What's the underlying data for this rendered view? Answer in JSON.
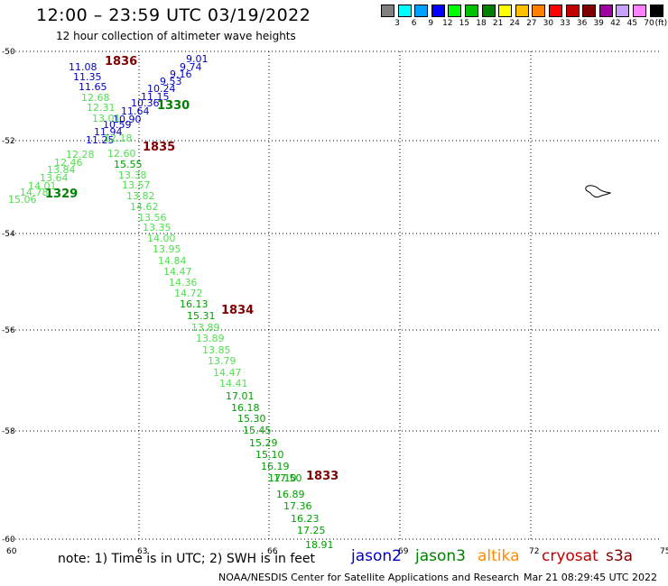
{
  "header": {
    "title": "12:00 – 23:59 UTC 03/19/2022",
    "subtitle": "12 hour collection of altimeter wave heights"
  },
  "legend": {
    "unit": "(ft)",
    "levels": [
      "3",
      "6",
      "9",
      "12",
      "15",
      "18",
      "21",
      "24",
      "27",
      "30",
      "33",
      "36",
      "39",
      "42",
      "45",
      "70"
    ],
    "colors": [
      "#808080",
      "#00ffff",
      "#00a0ff",
      "#0000ff",
      "#00ff00",
      "#00c000",
      "#008000",
      "#ffff00",
      "#ffc000",
      "#ff8000",
      "#ff0000",
      "#c00000",
      "#800000",
      "#a000a0",
      "#c8a0ff",
      "#ff80ff",
      "#000000"
    ]
  },
  "map": {
    "x_ticks": [
      "60",
      "63",
      "66",
      "69",
      "72",
      "75"
    ],
    "y_ticks": [
      "-50",
      "-52",
      "-54",
      "-56",
      "-58",
      "-60"
    ],
    "track_times": [
      {
        "text": "1836",
        "color": "#800000"
      },
      {
        "text": "1330",
        "color": "#008000"
      },
      {
        "text": "1835",
        "color": "#800000"
      },
      {
        "text": "1329",
        "color": "#008000"
      },
      {
        "text": "1834",
        "color": "#800000"
      },
      {
        "text": "1833",
        "color": "#800000"
      }
    ],
    "observations": [
      {
        "v": "9.01",
        "c": "#0000c8"
      },
      {
        "v": "9.74",
        "c": "#0000c8"
      },
      {
        "v": "9.16",
        "c": "#0000c8"
      },
      {
        "v": "9.53",
        "c": "#0000c8"
      },
      {
        "v": "10.24",
        "c": "#0000c8"
      },
      {
        "v": "11.15",
        "c": "#0000c8"
      },
      {
        "v": "10.36",
        "c": "#0000c8"
      },
      {
        "v": "11.64",
        "c": "#0000c8"
      },
      {
        "v": "10.90",
        "c": "#0000c8"
      },
      {
        "v": "10.59",
        "c": "#0000c8"
      },
      {
        "v": "11.94",
        "c": "#0000c8"
      },
      {
        "v": "11.25",
        "c": "#0000c8"
      },
      {
        "v": "11.08",
        "c": "#0000c8"
      },
      {
        "v": "11.35",
        "c": "#0000c8"
      },
      {
        "v": "11.65",
        "c": "#0000c8"
      },
      {
        "v": "12.68",
        "c": "#50e050"
      },
      {
        "v": "12.31",
        "c": "#50e050"
      },
      {
        "v": "13.01",
        "c": "#50e050"
      },
      {
        "v": "12.18",
        "c": "#50e050"
      },
      {
        "v": "12.28",
        "c": "#50e050"
      },
      {
        "v": "12.46",
        "c": "#50e050"
      },
      {
        "v": "13.84",
        "c": "#50e050"
      },
      {
        "v": "13.64",
        "c": "#50e050"
      },
      {
        "v": "14.01",
        "c": "#50e050"
      },
      {
        "v": "14.78",
        "c": "#50e050"
      },
      {
        "v": "15.06",
        "c": "#50e050"
      },
      {
        "v": "12.60",
        "c": "#50e050"
      },
      {
        "v": "15.55",
        "c": "#00a000"
      },
      {
        "v": "13.38",
        "c": "#50e050"
      },
      {
        "v": "13.57",
        "c": "#50e050"
      },
      {
        "v": "13.82",
        "c": "#50e050"
      },
      {
        "v": "14.62",
        "c": "#50e050"
      },
      {
        "v": "13.56",
        "c": "#50e050"
      },
      {
        "v": "13.35",
        "c": "#50e050"
      },
      {
        "v": "14.00",
        "c": "#50e050"
      },
      {
        "v": "13.95",
        "c": "#50e050"
      },
      {
        "v": "14.84",
        "c": "#50e050"
      },
      {
        "v": "14.47",
        "c": "#50e050"
      },
      {
        "v": "14.36",
        "c": "#50e050"
      },
      {
        "v": "14.72",
        "c": "#50e050"
      },
      {
        "v": "16.13",
        "c": "#00a000"
      },
      {
        "v": "15.31",
        "c": "#00a000"
      },
      {
        "v": "13.89",
        "c": "#50e050"
      },
      {
        "v": "13.89",
        "c": "#50e050"
      },
      {
        "v": "13.85",
        "c": "#50e050"
      },
      {
        "v": "13.79",
        "c": "#50e050"
      },
      {
        "v": "14.47",
        "c": "#50e050"
      },
      {
        "v": "14.41",
        "c": "#50e050"
      },
      {
        "v": "17.01",
        "c": "#00a000"
      },
      {
        "v": "16.18",
        "c": "#00a000"
      },
      {
        "v": "15.30",
        "c": "#00a000"
      },
      {
        "v": "15.45",
        "c": "#00a000"
      },
      {
        "v": "15.29",
        "c": "#00a000"
      },
      {
        "v": "15.10",
        "c": "#00a000"
      },
      {
        "v": "16.19",
        "c": "#00a000"
      },
      {
        "v": "17.10",
        "c": "#00a000"
      },
      {
        "v": "17.50",
        "c": "#00a000"
      },
      {
        "v": "16.89",
        "c": "#00a000"
      },
      {
        "v": "17.36",
        "c": "#00a000"
      },
      {
        "v": "16.23",
        "c": "#00a000"
      },
      {
        "v": "17.25",
        "c": "#00a000"
      },
      {
        "v": "18.91",
        "c": "#00a000"
      }
    ]
  },
  "footer": {
    "note": "note:  1) Time is in UTC;  2) SWH is in feet",
    "satellites": [
      {
        "name": "jason2",
        "color": "#0000c8"
      },
      {
        "name": "jason3",
        "color": "#008000"
      },
      {
        "name": "altika",
        "color": "#ff8c00"
      },
      {
        "name": "cryosat",
        "color": "#c00000"
      },
      {
        "name": "s3a",
        "color": "#800000"
      }
    ],
    "credit": "NOAA/NESDIS Center for Satellite Applications and Research",
    "timestamp": "Mar 21 08:29:45 UTC 2022"
  }
}
